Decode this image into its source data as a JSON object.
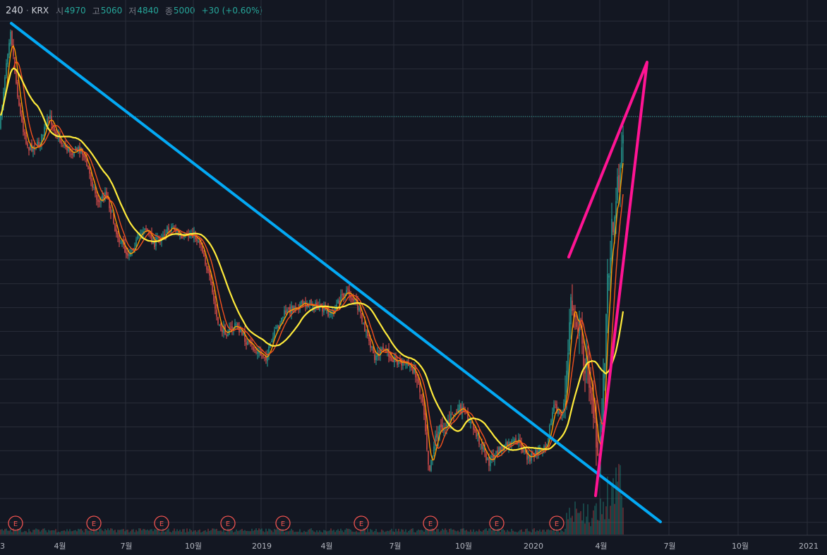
{
  "header": {
    "symbol": "240",
    "separator": "·",
    "exchange": "KRX",
    "open_label": "시",
    "open_value": "4970",
    "high_label": "고",
    "high_value": "5060",
    "low_label": "저",
    "low_value": "4840",
    "close_label": "종",
    "close_value": "5000",
    "change": "+30 (+0.60%)"
  },
  "colors": {
    "background": "#131722",
    "grid": "#2a2e39",
    "up": "#26a69a",
    "down": "#ef5350",
    "ma_fast": "#ff9800",
    "ma_mid": "#f4511e",
    "ma_slow": "#ffeb3b",
    "trendline": "#03a9f4",
    "triangle": "#ff1493",
    "last_price_line": "#26a69a"
  },
  "chart_data": {
    "type": "candlestick",
    "x_ticks": [
      "3",
      "4월",
      "7월",
      "10월",
      "2019",
      "4월",
      "7월",
      "10월",
      "2020",
      "4월",
      "7월",
      "10월",
      "2021"
    ],
    "x_range": [
      "2018-03",
      "2021-01"
    ],
    "y_axis": "none shown",
    "grid": true,
    "moving_averages": [
      "ma_fast",
      "ma_mid",
      "ma_slow"
    ],
    "earnings_markers": [
      "E",
      "E",
      "E",
      "E",
      "E",
      "E",
      "E",
      "E",
      "E"
    ],
    "annotations": [
      {
        "type": "trendline",
        "description": "downtrend line"
      },
      {
        "type": "triangle",
        "description": "breakout spike"
      }
    ]
  }
}
